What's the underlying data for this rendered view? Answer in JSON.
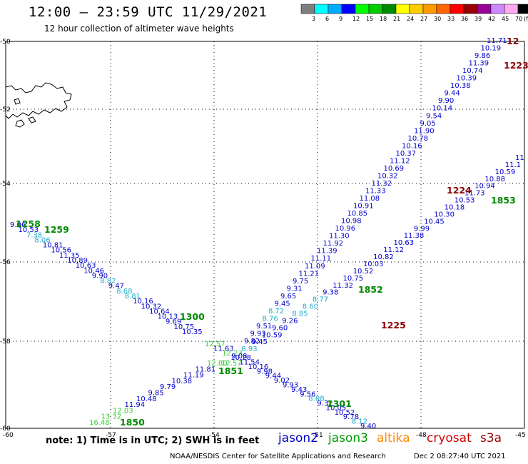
{
  "header": {
    "title": "12:00 — 23:59 UTC 11/29/2021",
    "subtitle": "12 hour collection of altimeter wave heights"
  },
  "color_scale": {
    "labels": [
      "3",
      "6",
      "9",
      "12",
      "15",
      "18",
      "21",
      "24",
      "27",
      "30",
      "33",
      "36",
      "39",
      "42",
      "45",
      "70"
    ],
    "unit": "(ft)",
    "colors": [
      "#7f7f7f",
      "#00ffff",
      "#00aaff",
      "#0000ff",
      "#00ff00",
      "#00cc00",
      "#008800",
      "#ffff00",
      "#ffcc00",
      "#ff9900",
      "#ff6600",
      "#ff0000",
      "#990000",
      "#990099",
      "#cc88ff",
      "#ffaaee",
      "#000000"
    ]
  },
  "axes": {
    "lon_ticks": [
      "-60",
      "-57",
      "-54",
      "-51",
      "-48",
      "-45"
    ],
    "lat_ticks": [
      "-50",
      "-52",
      "-54",
      "-56",
      "-58",
      "-60"
    ]
  },
  "tracks": [
    {
      "id": "jason2-descending-left",
      "points": [
        {
          "v": "9.06",
          "c": "#0000cc"
        },
        {
          "v": "10.53",
          "c": "#0000cc"
        },
        {
          "v": "7.38",
          "c": "#22aacc"
        },
        {
          "v": "8.06",
          "c": "#22aacc"
        },
        {
          "v": "10.81",
          "c": "#0000cc"
        },
        {
          "v": "10.56",
          "c": "#0000cc"
        },
        {
          "v": "11.35",
          "c": "#0000cc"
        },
        {
          "v": "10.89",
          "c": "#0000cc"
        },
        {
          "v": "10.63",
          "c": "#0000cc"
        },
        {
          "v": "10.46",
          "c": "#0000cc"
        },
        {
          "v": "9.90",
          "c": "#0000cc"
        },
        {
          "v": "8.82",
          "c": "#22aacc"
        },
        {
          "v": "9.47",
          "c": "#0000cc"
        },
        {
          "v": "8.68",
          "c": "#22aacc"
        },
        {
          "v": "8.81",
          "c": "#22aacc"
        },
        {
          "v": "10.16",
          "c": "#0000cc"
        },
        {
          "v": "10.32",
          "c": "#0000cc"
        },
        {
          "v": "10.64",
          "c": "#0000cc"
        },
        {
          "v": "10.13",
          "c": "#0000cc"
        },
        {
          "v": "9.69",
          "c": "#0000cc"
        },
        {
          "v": "10.75",
          "c": "#0000cc"
        },
        {
          "v": "10.35",
          "c": "#0000cc"
        }
      ]
    },
    {
      "id": "jason3-ascending-left",
      "points": [
        {
          "v": "16.48",
          "c": "#33cc33"
        },
        {
          "v": "13.32",
          "c": "#33cc33"
        },
        {
          "v": "12.03",
          "c": "#33cc33"
        },
        {
          "v": "11.94",
          "c": "#0000cc"
        },
        {
          "v": "10.48",
          "c": "#0000cc"
        },
        {
          "v": "9.85",
          "c": "#0000cc"
        },
        {
          "v": "9.79",
          "c": "#0000cc"
        },
        {
          "v": "10.38",
          "c": "#0000cc"
        },
        {
          "v": "11.19",
          "c": "#0000cc"
        },
        {
          "v": "11.81",
          "c": "#0000cc"
        },
        {
          "v": "12.80",
          "c": "#33cc33"
        }
      ]
    },
    {
      "id": "cross-center",
      "points": [
        {
          "v": "12.57",
          "c": "#33cc33"
        },
        {
          "v": "11.63",
          "c": "#0000cc"
        },
        {
          "v": "12.23",
          "c": "#33cc33"
        },
        {
          "v": "10.28",
          "c": "#0000cc"
        },
        {
          "v": "11.54",
          "c": "#0000cc"
        },
        {
          "v": "10.16",
          "c": "#0000cc"
        },
        {
          "v": "9.98",
          "c": "#0000cc"
        },
        {
          "v": "9.44",
          "c": "#0000cc"
        },
        {
          "v": "9.02",
          "c": "#0000cc"
        },
        {
          "v": "9.93",
          "c": "#0000cc"
        },
        {
          "v": "9.43",
          "c": "#0000cc"
        },
        {
          "v": "9.56",
          "c": "#0000cc"
        },
        {
          "v": "8.08",
          "c": "#22aacc"
        },
        {
          "v": "9.32",
          "c": "#0000cc"
        },
        {
          "v": "10.05",
          "c": "#0000cc"
        },
        {
          "v": "10.52",
          "c": "#0000cc"
        },
        {
          "v": "9.78",
          "c": "#0000cc"
        },
        {
          "v": "8.12",
          "c": "#22aacc"
        },
        {
          "v": "9.40",
          "c": "#0000cc"
        }
      ]
    },
    {
      "id": "middle-ascending",
      "points": [
        {
          "v": "9.82",
          "c": "#0000cc"
        },
        {
          "v": "9.93",
          "c": "#0000cc"
        },
        {
          "v": "9.51",
          "c": "#0000cc"
        },
        {
          "v": "8.76",
          "c": "#22aacc"
        },
        {
          "v": "8.72",
          "c": "#22aacc"
        },
        {
          "v": "9.45",
          "c": "#0000cc"
        },
        {
          "v": "9.65",
          "c": "#0000cc"
        },
        {
          "v": "9.31",
          "c": "#0000cc"
        },
        {
          "v": "9.75",
          "c": "#0000cc"
        },
        {
          "v": "11.21",
          "c": "#0000cc"
        },
        {
          "v": "11.09",
          "c": "#0000cc"
        },
        {
          "v": "11.11",
          "c": "#0000cc"
        },
        {
          "v": "11.39",
          "c": "#0000cc"
        },
        {
          "v": "11.92",
          "c": "#0000cc"
        },
        {
          "v": "11.30",
          "c": "#0000cc"
        },
        {
          "v": "10.96",
          "c": "#0000cc"
        },
        {
          "v": "10.98",
          "c": "#0000cc"
        },
        {
          "v": "10.85",
          "c": "#0000cc"
        },
        {
          "v": "10.91",
          "c": "#0000cc"
        },
        {
          "v": "11.08",
          "c": "#0000cc"
        },
        {
          "v": "11.33",
          "c": "#0000cc"
        },
        {
          "v": "11.32",
          "c": "#0000cc"
        },
        {
          "v": "10.32",
          "c": "#0000cc"
        },
        {
          "v": "10.69",
          "c": "#0000cc"
        },
        {
          "v": "11.12",
          "c": "#0000cc"
        },
        {
          "v": "10.37",
          "c": "#0000cc"
        },
        {
          "v": "10.16",
          "c": "#0000cc"
        },
        {
          "v": "10.78",
          "c": "#0000cc"
        },
        {
          "v": "11.90",
          "c": "#0000cc"
        },
        {
          "v": "9.05",
          "c": "#0000cc"
        },
        {
          "v": "9.54",
          "c": "#0000cc"
        },
        {
          "v": "10.14",
          "c": "#0000cc"
        },
        {
          "v": "9.90",
          "c": "#0000cc"
        },
        {
          "v": "9.44",
          "c": "#0000cc"
        },
        {
          "v": "10.38",
          "c": "#0000cc"
        },
        {
          "v": "10.39",
          "c": "#0000cc"
        },
        {
          "v": "10.74",
          "c": "#0000cc"
        },
        {
          "v": "11.39",
          "c": "#0000cc"
        },
        {
          "v": "9.86",
          "c": "#0000cc"
        },
        {
          "v": "10.19",
          "c": "#0000cc"
        },
        {
          "v": "11.71",
          "c": "#0000cc"
        }
      ]
    },
    {
      "id": "right-lower-ascending",
      "points": [
        {
          "v": "12.57",
          "c": "#33cc33"
        },
        {
          "v": "9.08",
          "c": "#0000cc"
        },
        {
          "v": "8.93",
          "c": "#22aacc"
        },
        {
          "v": "9.45",
          "c": "#0000cc"
        },
        {
          "v": "10.59",
          "c": "#0000cc"
        },
        {
          "v": "9.60",
          "c": "#0000cc"
        },
        {
          "v": "9.26",
          "c": "#0000cc"
        },
        {
          "v": "8.85",
          "c": "#22aacc"
        },
        {
          "v": "8.60",
          "c": "#22aacc"
        },
        {
          "v": "8.77",
          "c": "#22aacc"
        },
        {
          "v": "9.38",
          "c": "#0000cc"
        },
        {
          "v": "11.32",
          "c": "#0000cc"
        },
        {
          "v": "10.75",
          "c": "#0000cc"
        },
        {
          "v": "10.52",
          "c": "#0000cc"
        },
        {
          "v": "10.03",
          "c": "#0000cc"
        },
        {
          "v": "10.82",
          "c": "#0000cc"
        },
        {
          "v": "11.12",
          "c": "#0000cc"
        },
        {
          "v": "10.63",
          "c": "#0000cc"
        },
        {
          "v": "11.38",
          "c": "#0000cc"
        },
        {
          "v": "9.99",
          "c": "#0000cc"
        },
        {
          "v": "10.45",
          "c": "#0000cc"
        },
        {
          "v": "10.30",
          "c": "#0000cc"
        },
        {
          "v": "10.18",
          "c": "#0000cc"
        },
        {
          "v": "10.53",
          "c": "#0000cc"
        },
        {
          "v": "11.73",
          "c": "#0000cc"
        },
        {
          "v": "10.94",
          "c": "#0000cc"
        },
        {
          "v": "10.88",
          "c": "#0000cc"
        },
        {
          "v": "10.59",
          "c": "#0000cc"
        },
        {
          "v": "11.1",
          "c": "#0000cc"
        },
        {
          "v": "11",
          "c": "#0000cc"
        }
      ]
    }
  ],
  "time_labels": [
    {
      "v": "1258",
      "c": "#008800"
    },
    {
      "v": "1259",
      "c": "#008800"
    },
    {
      "v": "1300",
      "c": "#008800"
    },
    {
      "v": "1850",
      "c": "#008800"
    },
    {
      "v": "1851",
      "c": "#008800"
    },
    {
      "v": "1852",
      "c": "#008800"
    },
    {
      "v": "1853",
      "c": "#008800"
    },
    {
      "v": "1301",
      "c": "#008800"
    },
    {
      "v": "1223",
      "c": "#880000"
    },
    {
      "v": "1224",
      "c": "#880000"
    },
    {
      "v": "1225",
      "c": "#880000"
    },
    {
      "v": "12",
      "c": "#880000"
    }
  ],
  "footer": {
    "note": "note:  1) Time is in UTC;  2) SWH is in feet",
    "satellites": [
      {
        "name": "jason2",
        "color": "#0000cc"
      },
      {
        "name": "jason3",
        "color": "#009900"
      },
      {
        "name": "altika",
        "color": "#ff8800"
      },
      {
        "name": "cryosat",
        "color": "#cc0000"
      },
      {
        "name": "s3a",
        "color": "#990000"
      }
    ],
    "credit": "NOAA/NESDIS Center for Satellite Applications and Research",
    "timestamp": "Dec  2 08:27:40 UTC 2021"
  }
}
